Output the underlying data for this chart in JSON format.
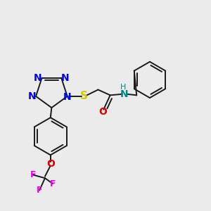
{
  "bg_color": "#ebebeb",
  "bond_color": "#1a1a1a",
  "N_color": "#0000ee",
  "S_color": "#cccc00",
  "O_color": "#dd0000",
  "F_color": "#ee00ee",
  "NH_color": "#008888",
  "lw": 1.4,
  "font_size": 9,
  "xlim": [
    0.05,
    1.0
  ],
  "ylim": [
    0.08,
    0.95
  ]
}
